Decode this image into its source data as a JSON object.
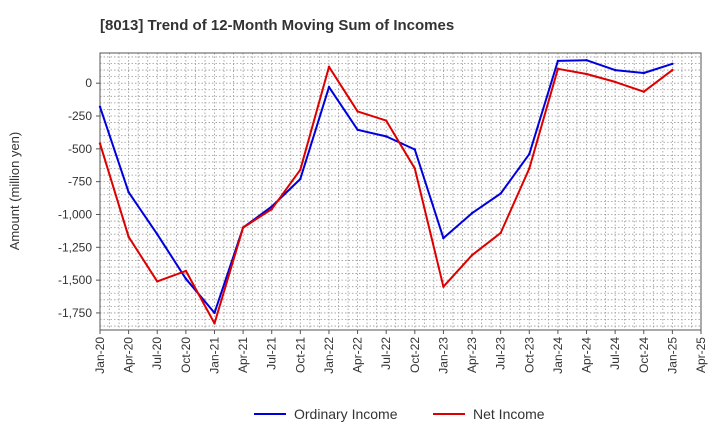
{
  "chart_data": {
    "type": "line",
    "title": "[8013]  Trend of 12-Month Moving Sum of Incomes",
    "xlabel": "",
    "ylabel": "Amount (million yen)",
    "x_tick_labels": [
      "Jan-20",
      "Apr-20",
      "Jul-20",
      "Oct-20",
      "Jan-21",
      "Apr-21",
      "Jul-21",
      "Oct-21",
      "Jan-22",
      "Apr-22",
      "Jul-22",
      "Oct-22",
      "Jan-23",
      "Apr-23",
      "Jul-23",
      "Oct-23",
      "Jan-24",
      "Apr-24",
      "Jul-24",
      "Oct-24",
      "Jan-25",
      "Apr-25"
    ],
    "y_ticks": [
      0,
      -250,
      -500,
      -750,
      -1000,
      -1250,
      -1500,
      -1750
    ],
    "y_tick_labels": [
      "0",
      "-250",
      "-500",
      "-750",
      "-1,000",
      "-1,250",
      "-1,500",
      "-1,750"
    ],
    "ylim": [
      -1880,
      230
    ],
    "grid": true,
    "legend_position": "bottom-center",
    "series": [
      {
        "name": "Ordinary Income",
        "color": "#0000dd",
        "values": [
          -180,
          -830,
          -1150,
          -1490,
          -1750,
          -1100,
          -940,
          -730,
          -30,
          -355,
          -405,
          -505,
          -1180,
          -990,
          -840,
          -540,
          170,
          175,
          100,
          78,
          148
        ]
      },
      {
        "name": "Net Income",
        "color": "#dd0000",
        "values": [
          -460,
          -1170,
          -1510,
          -1430,
          -1830,
          -1100,
          -960,
          -660,
          125,
          -215,
          -285,
          -650,
          -1550,
          -1310,
          -1140,
          -650,
          110,
          70,
          10,
          -65,
          100
        ]
      }
    ]
  }
}
